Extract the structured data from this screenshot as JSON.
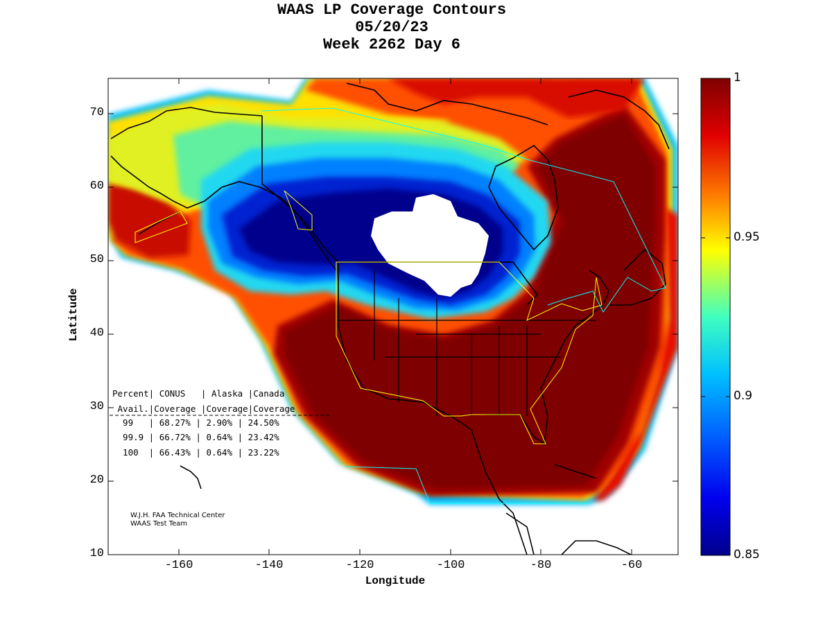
{
  "title": {
    "line1": "WAAS LP Coverage Contours",
    "line2": "05/20/23",
    "line3": "Week 2262 Day 6"
  },
  "axes": {
    "xlabel": "Longitude",
    "ylabel": "Latitude",
    "xticks": [
      "-160",
      "-140",
      "-120",
      "-100",
      "-80",
      "-60"
    ],
    "yticks": [
      "70",
      "60",
      "50",
      "40",
      "30",
      "20",
      "10"
    ],
    "xlim": [
      -175,
      -50
    ],
    "ylim": [
      10,
      75
    ]
  },
  "colorbar": {
    "ticks": [
      "1",
      "0.95",
      "0.9",
      "0.85"
    ],
    "range": [
      0.85,
      1
    ]
  },
  "stats_table": {
    "header1": "Percent| CONUS   | Alaska |Canada",
    "header2": " Avail.|Coverage |Coverage|Coverage",
    "rows": [
      "  99   | 68.27% | 2.90% | 24.50%",
      "  99.9 | 66.72% | 0.64% | 23.42%",
      "  100  | 66.43% | 0.64% | 23.22%"
    ]
  },
  "credit": {
    "line1": "W.J.H. FAA Technical Center",
    "line2": "WAAS Test Team"
  },
  "colors": {
    "dark_red": "#800000",
    "red": "#d81000",
    "orange": "#ff8000",
    "yellow": "#f8f800",
    "cyan": "#20e8e8",
    "blue": "#0050f0",
    "navy": "#00008c"
  }
}
